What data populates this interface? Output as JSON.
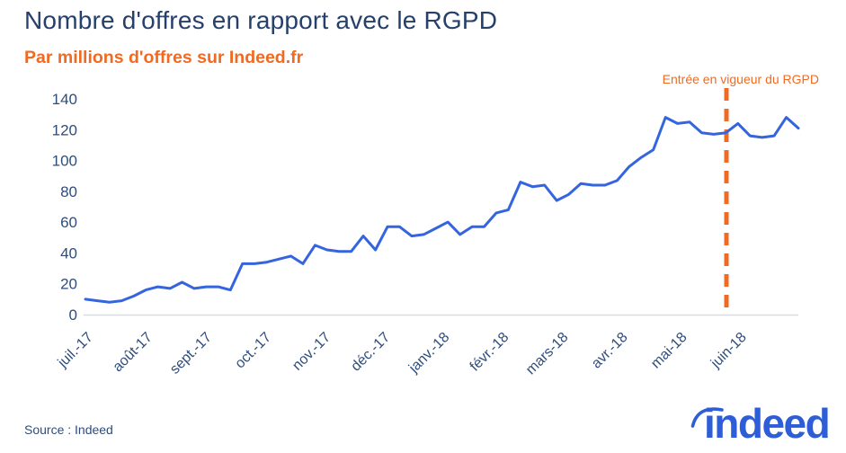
{
  "footer": {
    "source": "Source : Indeed",
    "logo": "indeed"
  },
  "colors": {
    "title_text": "#26406b",
    "accent_orange": "#f16a21",
    "line_blue": "#3465df",
    "logo_blue": "#2d5dd7",
    "axis_text": "#2e4d7b",
    "axis_line": "#d9dbde"
  },
  "chart_data": {
    "type": "line",
    "title": "Nombre d'offres en rapport avec le RGPD",
    "subtitle": "Par millions d'offres sur Indeed.fr",
    "xlabel": "",
    "ylabel": "",
    "ylim": [
      0,
      140
    ],
    "yticks": [
      0,
      20,
      40,
      60,
      80,
      100,
      120,
      140
    ],
    "grid": false,
    "legend": "none",
    "x_tick_labels": [
      "juil.-17",
      "août-17",
      "sept.-17",
      "oct.-17",
      "nov.-17",
      "déc.-17",
      "janv.-18",
      "févr.-18",
      "mars-18",
      "avr.-18",
      "mai-18",
      "juin-18"
    ],
    "series": [
      {
        "name": "offres_rgpd_par_million",
        "values": [
          10,
          9,
          8,
          9,
          12,
          16,
          18,
          17,
          21,
          17,
          18,
          18,
          16,
          33,
          33,
          34,
          36,
          38,
          33,
          45,
          42,
          41,
          41,
          51,
          42,
          57,
          57,
          51,
          52,
          56,
          60,
          52,
          57,
          57,
          66,
          68,
          86,
          83,
          84,
          74,
          78,
          85,
          84,
          84,
          87,
          96,
          102,
          107,
          128,
          124,
          125,
          118,
          117,
          118,
          124,
          116,
          115,
          116,
          128,
          121
        ]
      }
    ],
    "annotation": {
      "label": "Entrée en vigueur du RGPD",
      "between_ticks": [
        "mai-18",
        "juin-18"
      ],
      "style": "vertical-dashed-line"
    }
  }
}
